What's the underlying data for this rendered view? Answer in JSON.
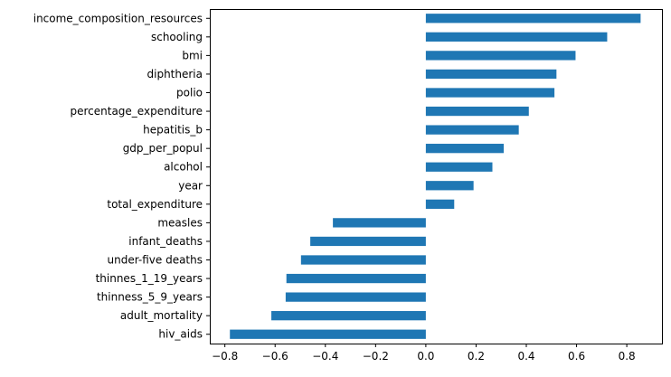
{
  "chart_data": {
    "type": "bar",
    "orientation": "horizontal",
    "title": "",
    "xlabel": "",
    "ylabel": "",
    "xlim": [
      -0.86,
      0.94
    ],
    "xticks": [
      -0.8,
      -0.6,
      -0.4,
      -0.2,
      0.0,
      0.2,
      0.4,
      0.6,
      0.8
    ],
    "xtick_labels": [
      "−0.8",
      "−0.6",
      "−0.4",
      "−0.2",
      "0.0",
      "0.2",
      "0.4",
      "0.6",
      "0.8"
    ],
    "grid": false,
    "legend": "none",
    "bar_color": "#1f77b4",
    "categories": [
      "income_composition_resources",
      "schooling",
      "bmi",
      "diphtheria",
      "polio",
      "percentage_expenditure",
      "hepatitis_b",
      "gdp_per_popul",
      "alcohol",
      "year",
      "total_expenditure",
      "measles",
      "infant_deaths",
      "under-five deaths ",
      "thinnes_1_19_years",
      "thinness_5_9_years",
      "adult_mortality",
      "hiv_aids"
    ],
    "values": [
      0.855,
      0.722,
      0.596,
      0.52,
      0.512,
      0.41,
      0.37,
      0.31,
      0.265,
      0.19,
      0.113,
      -0.37,
      -0.46,
      -0.497,
      -0.555,
      -0.558,
      -0.615,
      -0.78
    ]
  }
}
